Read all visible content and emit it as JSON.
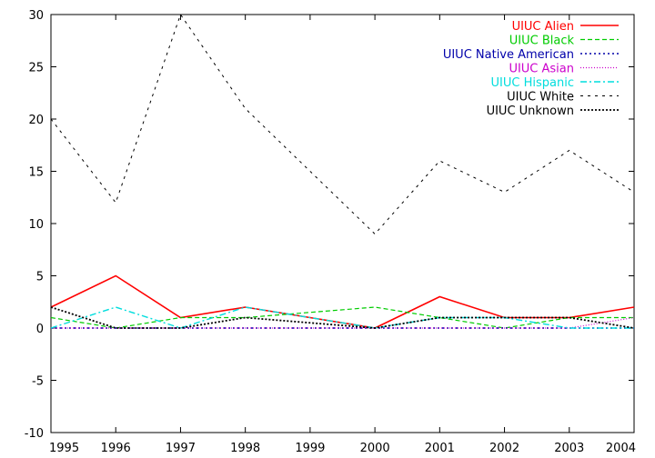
{
  "chart_data": {
    "type": "line",
    "title": "",
    "xlabel": "",
    "ylabel": "",
    "x": [
      1995,
      1996,
      1997,
      1998,
      1999,
      2000,
      2001,
      2002,
      2003,
      2004
    ],
    "xlim": [
      1995,
      2004
    ],
    "ylim": [
      -10,
      30
    ],
    "yticks": [
      -10,
      -5,
      0,
      5,
      10,
      15,
      20,
      25,
      30
    ],
    "xticks": [
      1995,
      1996,
      1997,
      1998,
      1999,
      2000,
      2001,
      2002,
      2003,
      2004
    ],
    "grid": false,
    "legend_position": "top-right",
    "series": [
      {
        "name": "UIUC Alien",
        "color": "#ff0000",
        "dash": "solid",
        "values": [
          2,
          5,
          1,
          2,
          1,
          0,
          3,
          1,
          1,
          2
        ]
      },
      {
        "name": "UIUC Black",
        "color": "#00cc00",
        "dash": "dashed",
        "values": [
          1,
          0,
          1,
          1,
          1.5,
          2,
          1,
          0,
          1,
          1
        ]
      },
      {
        "name": "UIUC Native American",
        "color": "#0000aa",
        "dash": "dotted",
        "values": [
          0,
          0,
          0,
          0,
          0,
          0,
          0,
          0,
          0,
          0
        ]
      },
      {
        "name": "UIUC Asian",
        "color": "#cc00cc",
        "dash": "fine-dotted",
        "values": [
          0,
          0,
          0,
          0,
          0,
          0,
          0,
          0,
          0,
          1
        ]
      },
      {
        "name": "UIUC Hispanic",
        "color": "#00dddd",
        "dash": "dash-dot",
        "values": [
          0,
          2,
          0,
          2,
          1,
          0,
          1,
          1,
          0,
          0
        ]
      },
      {
        "name": "UIUC White",
        "color": "#000000",
        "dash": "short-dashed",
        "values": [
          20,
          12,
          30,
          21,
          15,
          9,
          16,
          13,
          17,
          13
        ]
      },
      {
        "name": "UIUC Unknown",
        "color": "#000000",
        "dash": "dense-dotted",
        "values": [
          2,
          0,
          0,
          1,
          0.5,
          0,
          1,
          1,
          1,
          0
        ]
      }
    ]
  }
}
